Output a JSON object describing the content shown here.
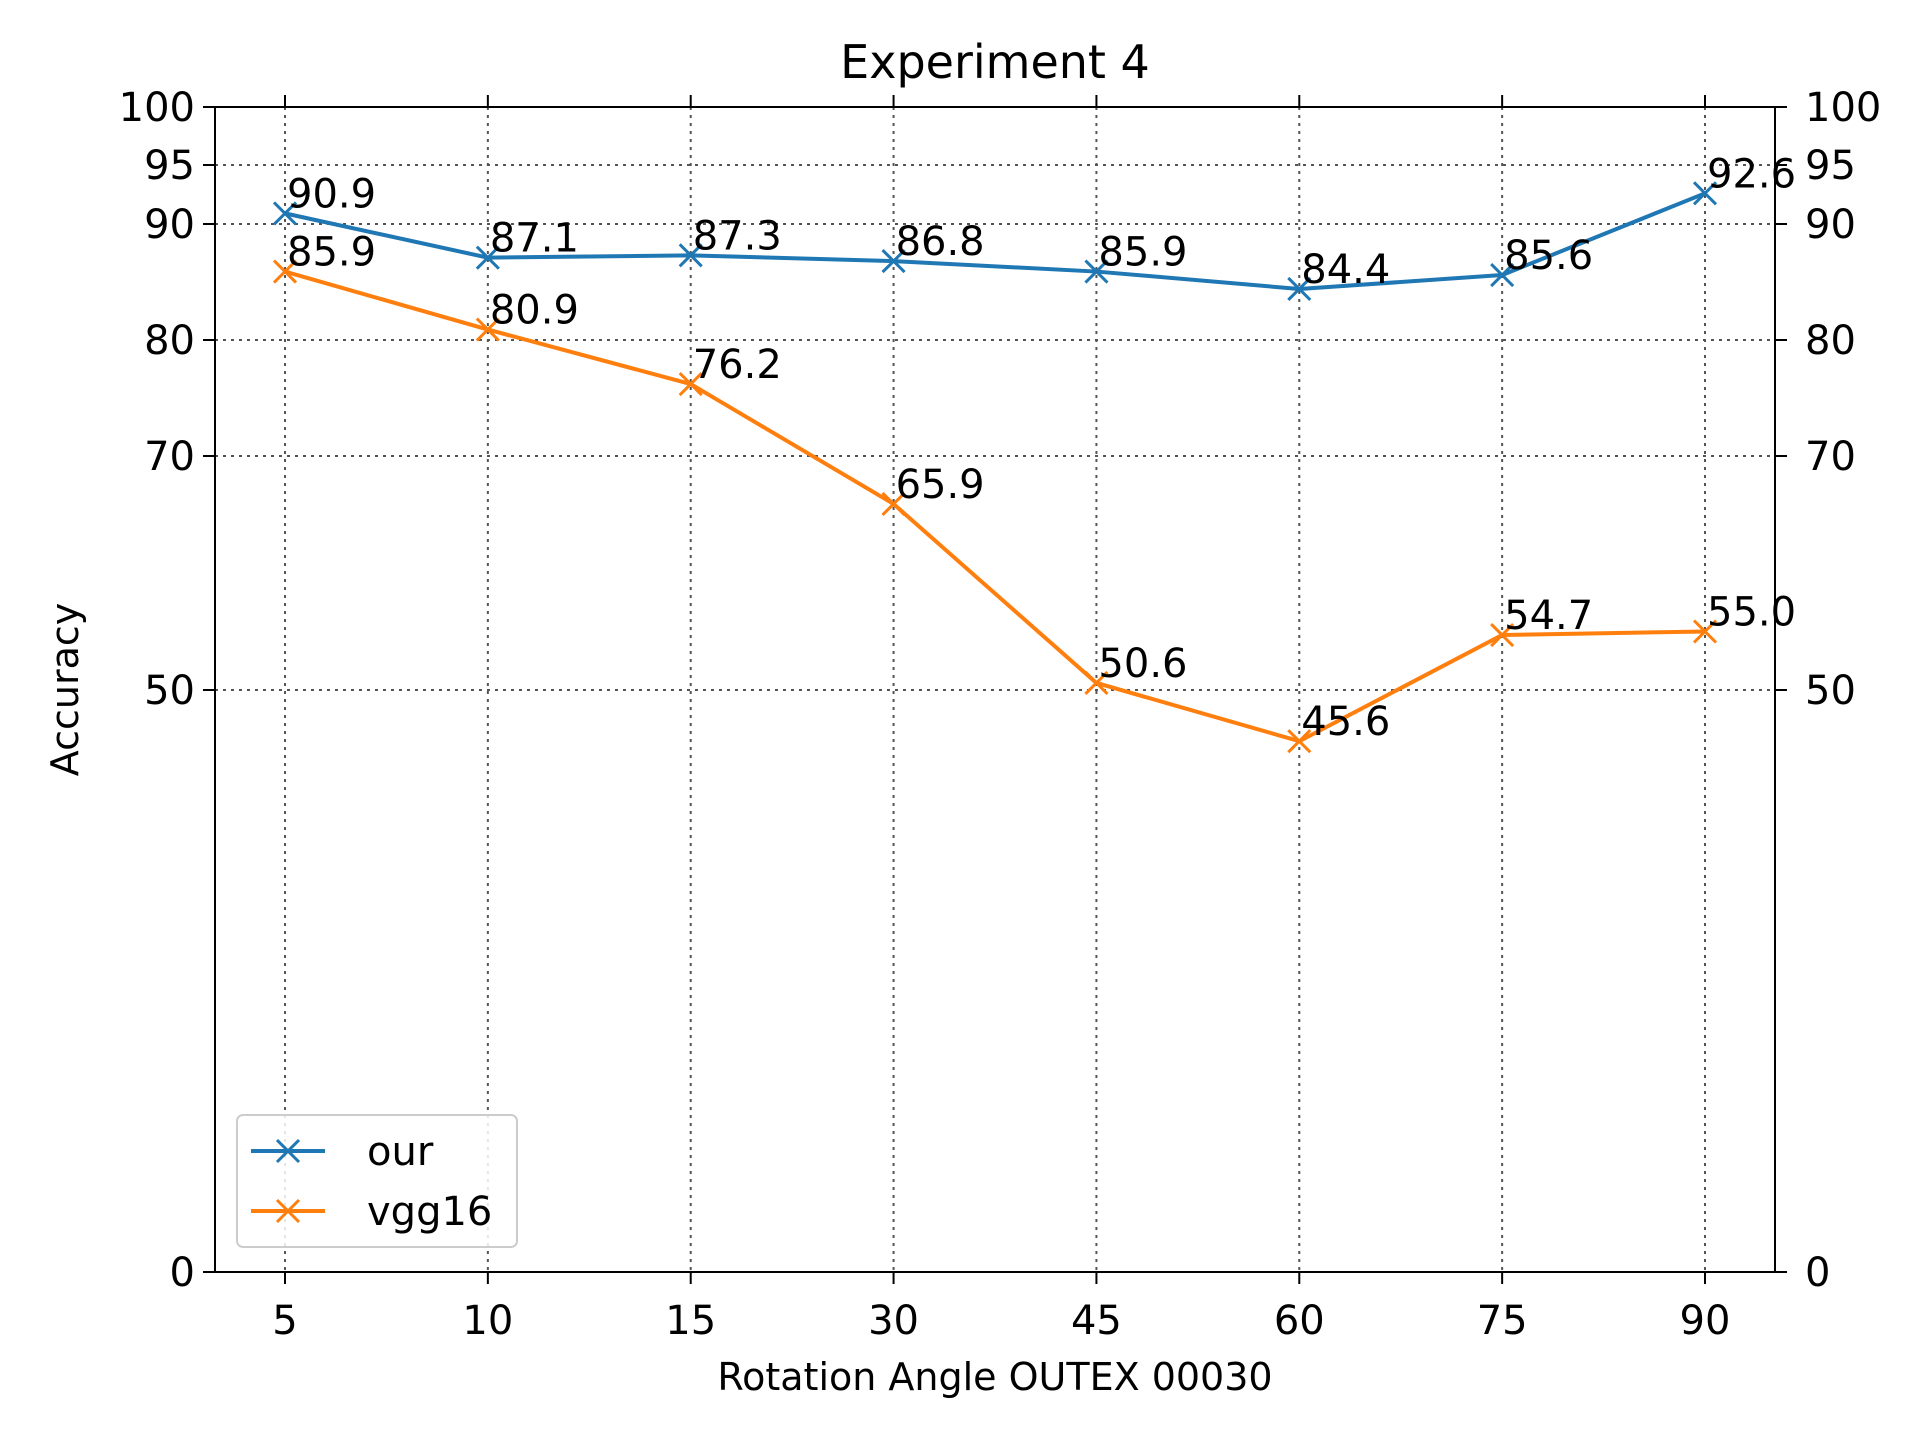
{
  "chart_data": {
    "type": "line",
    "title": "Experiment 4",
    "xlabel": "Rotation Angle OUTEX 00030",
    "ylabel": "Accuracy",
    "categories": [
      "5",
      "10",
      "15",
      "30",
      "45",
      "60",
      "75",
      "90"
    ],
    "yticks": [
      0,
      50,
      70,
      80,
      90,
      95,
      100
    ],
    "ylim": [
      0,
      100
    ],
    "y_scale": "custom (non-linear below 50)",
    "right_axis_ticks": true,
    "grid": true,
    "grid_style": "dotted",
    "legend_position": "lower-left",
    "marker": "x",
    "series": [
      {
        "name": "our",
        "color": "#1f77b4",
        "values": [
          90.9,
          87.1,
          87.3,
          86.8,
          85.9,
          84.4,
          85.6,
          92.6
        ],
        "labels": [
          "90.9",
          "87.1",
          "87.3",
          "86.8",
          "85.9",
          "84.4",
          "85.6",
          "92.6"
        ]
      },
      {
        "name": "vgg16",
        "color": "#ff7f0e",
        "values": [
          85.9,
          80.9,
          76.2,
          65.9,
          50.6,
          45.6,
          54.7,
          55.0
        ],
        "labels": [
          "85.9",
          "80.9",
          "76.2",
          "65.9",
          "50.6",
          "45.6",
          "54.7",
          "55.0"
        ]
      }
    ]
  }
}
